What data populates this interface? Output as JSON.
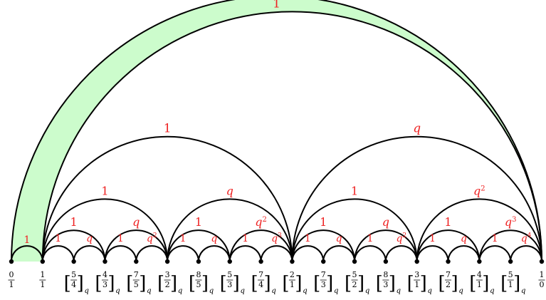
{
  "diagram": {
    "colors": {
      "fill": "#ccfccc",
      "edge": "#000000",
      "weight": "#ee2222",
      "vertex": "#000000"
    },
    "shaded_region": {
      "outer_arc": [
        "0/1",
        "1/0"
      ],
      "inner_arcs": [
        [
          "1/1",
          "1/0"
        ]
      ]
    },
    "vertices": [
      {
        "id": "0/1",
        "num": "0",
        "den": "1",
        "bracketed": false
      },
      {
        "id": "1/1",
        "num": "1",
        "den": "1",
        "bracketed": false
      },
      {
        "id": "5/4",
        "num": "5",
        "den": "4",
        "bracketed": true,
        "sub": "q"
      },
      {
        "id": "4/3",
        "num": "4",
        "den": "3",
        "bracketed": true,
        "sub": "q"
      },
      {
        "id": "7/5",
        "num": "7",
        "den": "5",
        "bracketed": true,
        "sub": "q"
      },
      {
        "id": "3/2",
        "num": "3",
        "den": "2",
        "bracketed": true,
        "sub": "q"
      },
      {
        "id": "8/5",
        "num": "8",
        "den": "5",
        "bracketed": true,
        "sub": "q"
      },
      {
        "id": "5/3",
        "num": "5",
        "den": "3",
        "bracketed": true,
        "sub": "q"
      },
      {
        "id": "7/4",
        "num": "7",
        "den": "4",
        "bracketed": true,
        "sub": "q"
      },
      {
        "id": "2/1",
        "num": "2",
        "den": "1",
        "bracketed": true,
        "sub": "q"
      },
      {
        "id": "7/3",
        "num": "7",
        "den": "3",
        "bracketed": true,
        "sub": "q"
      },
      {
        "id": "5/2",
        "num": "5",
        "den": "2",
        "bracketed": true,
        "sub": "q"
      },
      {
        "id": "8/3",
        "num": "8",
        "den": "3",
        "bracketed": true,
        "sub": "q"
      },
      {
        "id": "3/1",
        "num": "3",
        "den": "1",
        "bracketed": true,
        "sub": "q"
      },
      {
        "id": "7/2",
        "num": "7",
        "den": "2",
        "bracketed": true,
        "sub": "q"
      },
      {
        "id": "4/1",
        "num": "4",
        "den": "1",
        "bracketed": true,
        "sub": "q"
      },
      {
        "id": "5/1",
        "num": "5",
        "den": "1",
        "bracketed": true,
        "sub": "q"
      },
      {
        "id": "1/0",
        "num": "1",
        "den": "0",
        "bracketed": false
      }
    ],
    "edges": [
      {
        "from": "0/1",
        "to": "1/0",
        "weight": "1",
        "base": "1",
        "exp": ""
      },
      {
        "from": "1/1",
        "to": "1/0",
        "weight": "",
        "base": "",
        "exp": ""
      },
      {
        "from": "0/1",
        "to": "1/1",
        "weight": "1",
        "base": "1",
        "exp": ""
      },
      {
        "from": "1/1",
        "to": "2/1",
        "weight": "1",
        "base": "1",
        "exp": ""
      },
      {
        "from": "2/1",
        "to": "1/0",
        "weight": "q",
        "base": "q",
        "exp": ""
      },
      {
        "from": "1/1",
        "to": "3/2",
        "weight": "1",
        "base": "1",
        "exp": ""
      },
      {
        "from": "3/2",
        "to": "2/1",
        "weight": "q",
        "base": "q",
        "exp": ""
      },
      {
        "from": "2/1",
        "to": "3/1",
        "weight": "1",
        "base": "1",
        "exp": ""
      },
      {
        "from": "3/1",
        "to": "1/0",
        "weight": "q^2",
        "base": "q",
        "exp": "2"
      },
      {
        "from": "1/1",
        "to": "4/3",
        "weight": "1",
        "base": "1",
        "exp": ""
      },
      {
        "from": "4/3",
        "to": "3/2",
        "weight": "q",
        "base": "q",
        "exp": ""
      },
      {
        "from": "3/2",
        "to": "5/3",
        "weight": "1",
        "base": "1",
        "exp": ""
      },
      {
        "from": "5/3",
        "to": "2/1",
        "weight": "q^2",
        "base": "q",
        "exp": "2"
      },
      {
        "from": "2/1",
        "to": "5/2",
        "weight": "1",
        "base": "1",
        "exp": ""
      },
      {
        "from": "5/2",
        "to": "3/1",
        "weight": "q",
        "base": "q",
        "exp": ""
      },
      {
        "from": "3/1",
        "to": "4/1",
        "weight": "1",
        "base": "1",
        "exp": ""
      },
      {
        "from": "4/1",
        "to": "1/0",
        "weight": "q^3",
        "base": "q",
        "exp": "3"
      },
      {
        "from": "1/1",
        "to": "5/4",
        "weight": "1",
        "base": "1",
        "exp": ""
      },
      {
        "from": "5/4",
        "to": "4/3",
        "weight": "q",
        "base": "q",
        "exp": ""
      },
      {
        "from": "4/3",
        "to": "7/5",
        "weight": "1",
        "base": "1",
        "exp": ""
      },
      {
        "from": "7/5",
        "to": "3/2",
        "weight": "q^2",
        "base": "q",
        "exp": "2"
      },
      {
        "from": "3/2",
        "to": "8/5",
        "weight": "1",
        "base": "1",
        "exp": ""
      },
      {
        "from": "8/5",
        "to": "5/3",
        "weight": "q",
        "base": "q",
        "exp": ""
      },
      {
        "from": "5/3",
        "to": "7/4",
        "weight": "1",
        "base": "1",
        "exp": ""
      },
      {
        "from": "7/4",
        "to": "2/1",
        "weight": "q^3",
        "base": "q",
        "exp": "3"
      },
      {
        "from": "2/1",
        "to": "7/3",
        "weight": "1",
        "base": "1",
        "exp": ""
      },
      {
        "from": "7/3",
        "to": "5/2",
        "weight": "q",
        "base": "q",
        "exp": ""
      },
      {
        "from": "5/2",
        "to": "8/3",
        "weight": "1",
        "base": "1",
        "exp": ""
      },
      {
        "from": "8/3",
        "to": "3/1",
        "weight": "q^2",
        "base": "q",
        "exp": "2"
      },
      {
        "from": "3/1",
        "to": "7/2",
        "weight": "1",
        "base": "1",
        "exp": ""
      },
      {
        "from": "7/2",
        "to": "4/1",
        "weight": "q",
        "base": "q",
        "exp": ""
      },
      {
        "from": "4/1",
        "to": "5/1",
        "weight": "1",
        "base": "1",
        "exp": ""
      },
      {
        "from": "5/1",
        "to": "1/0",
        "weight": "q^4",
        "base": "q",
        "exp": "4"
      }
    ]
  }
}
